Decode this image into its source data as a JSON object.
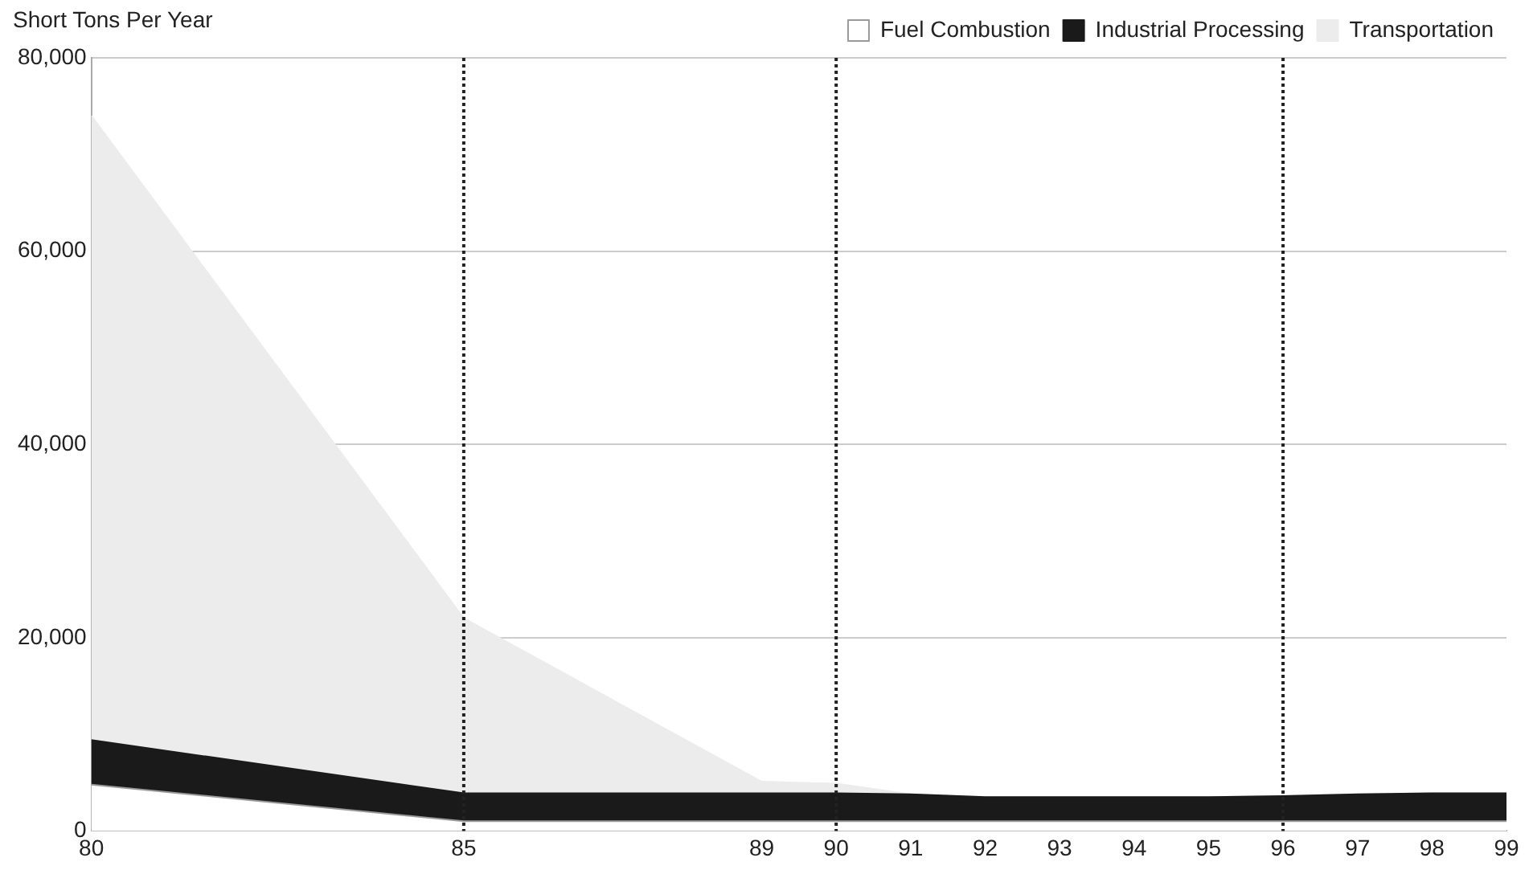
{
  "chart_data": {
    "type": "area",
    "stacked": true,
    "ylabel": "Short Tons Per Year",
    "x": [
      80,
      85,
      89,
      90,
      91,
      92,
      93,
      94,
      95,
      96,
      97,
      98,
      99
    ],
    "xlim": [
      80,
      99
    ],
    "xticks": [
      80,
      85,
      89,
      90,
      91,
      92,
      93,
      94,
      95,
      96,
      97,
      98,
      99
    ],
    "ylim": [
      0,
      80000
    ],
    "yticks": [
      0,
      {
        "value": 20000,
        "label": "20,000"
      },
      {
        "value": 40000,
        "label": "40,000"
      },
      {
        "value": 60000,
        "label": "60,000"
      },
      {
        "value": 80000,
        "label": "80,000"
      }
    ],
    "series": [
      {
        "name": "Fuel Combustion",
        "color": "#ffffff",
        "values": [
          4800,
          1000,
          1000,
          1000,
          1000,
          1000,
          1000,
          1000,
          1000,
          1000,
          1000,
          1000,
          1000
        ]
      },
      {
        "name": "Industrial Processing",
        "color": "#1a1a1a",
        "values": [
          4600,
          2900,
          2900,
          2900,
          2800,
          2500,
          2500,
          2500,
          2500,
          2600,
          2800,
          2900,
          2900
        ]
      },
      {
        "name": "Transportation",
        "color": "#ececec",
        "values": [
          64600,
          18100,
          1200,
          1000,
          0,
          0,
          0,
          0,
          0,
          0,
          0,
          0,
          0
        ]
      }
    ],
    "ref_lines": [
      {
        "axis": "x",
        "value": 85,
        "line_style": "dotted",
        "color": "#222222"
      },
      {
        "axis": "x",
        "value": 90,
        "line_style": "dotted",
        "color": "#222222"
      },
      {
        "axis": "x",
        "value": 96,
        "line_style": "dotted",
        "color": "#222222"
      }
    ],
    "grid": "y",
    "legend": "top right"
  }
}
